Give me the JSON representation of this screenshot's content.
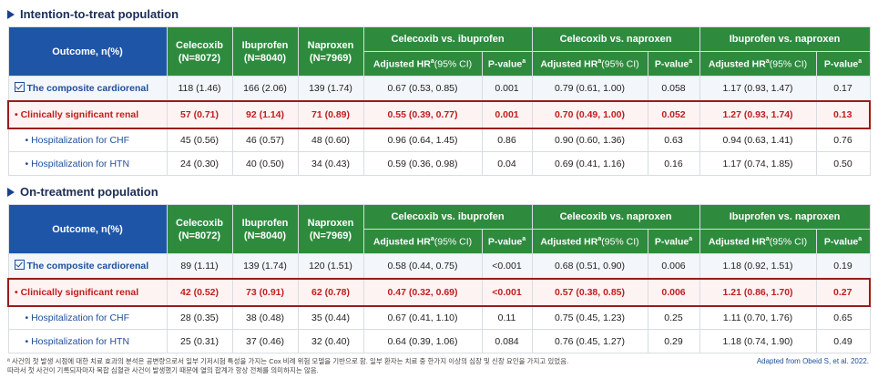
{
  "sections": [
    {
      "title": "Intention-to-treat population",
      "rows": [
        {
          "label": "The composite cardiorenal",
          "vals": [
            "118 (1.46)",
            "166 (2.06)",
            "139 (1.74)",
            "0.67 (0.53, 0.85)",
            "0.001",
            "0.79 (0.61, 1.00)",
            "0.058",
            "1.17 (0.93, 1.47)",
            "0.17"
          ]
        },
        {
          "label": "• Clinically significant renal",
          "vals": [
            "57 (0.71)",
            "92 (1.14)",
            "71 (0.89)",
            "0.55 (0.39, 0.77)",
            "0.001",
            "0.70 (0.49, 1.00)",
            "0.052",
            "1.27 (0.93, 1.74)",
            "0.13"
          ]
        },
        {
          "label": "• Hospitalization for CHF",
          "vals": [
            "45 (0.56)",
            "46 (0.57)",
            "48 (0.60)",
            "0.96 (0.64, 1.45)",
            "0.86",
            "0.90 (0.60, 1.36)",
            "0.63",
            "0.94 (0.63, 1.41)",
            "0.76"
          ]
        },
        {
          "label": "• Hospitalization for HTN",
          "vals": [
            "24 (0.30)",
            "40 (0.50)",
            "34 (0.43)",
            "0.59 (0.36, 0.98)",
            "0.04",
            "0.69 (0.41, 1.16)",
            "0.16",
            "1.17 (0.74, 1.85)",
            "0.50"
          ]
        }
      ]
    },
    {
      "title": "On-treatment population",
      "rows": [
        {
          "label": "The composite cardiorenal",
          "vals": [
            "89 (1.11)",
            "139 (1.74)",
            "120 (1.51)",
            "0.58 (0.44, 0.75)",
            "<0.001",
            "0.68 (0.51, 0.90)",
            "0.006",
            "1.18 (0.92, 1.51)",
            "0.19"
          ]
        },
        {
          "label": "• Clinically significant renal",
          "vals": [
            "42 (0.52)",
            "73 (0.91)",
            "62 (0.78)",
            "0.47 (0.32, 0.69)",
            "<0.001",
            "0.57 (0.38, 0.85)",
            "0.006",
            "1.21 (0.86, 1.70)",
            "0.27"
          ]
        },
        {
          "label": "• Hospitalization for CHF",
          "vals": [
            "28 (0.35)",
            "38 (0.48)",
            "35 (0.44)",
            "0.67 (0.41, 1.10)",
            "0.11",
            "0.75 (0.45, 1.23)",
            "0.25",
            "1.11 (0.70, 1.76)",
            "0.65"
          ]
        },
        {
          "label": "• Hospitalization for HTN",
          "vals": [
            "25 (0.31)",
            "37 (0.46)",
            "32 (0.40)",
            "0.64 (0.39, 1.06)",
            "0.084",
            "0.76 (0.45, 1.27)",
            "0.29",
            "1.18 (0.74, 1.90)",
            "0.49"
          ]
        }
      ]
    }
  ],
  "header": {
    "outcome": "Outcome, n(%)",
    "celecoxib": "Celecoxib",
    "celecoxib_n": "(N=8072)",
    "ibuprofen": "Ibuprofen",
    "ibuprofen_n": "(N=8040)",
    "naproxen": "Naproxen",
    "naproxen_n": "(N=7969)",
    "grp1": "Celecoxib vs. ibuprofen",
    "grp2": "Celecoxib vs. naproxen",
    "grp3": "Ibuprofen vs. naproxen",
    "hr_label": "Adjusted HR",
    "hr_sup": "a",
    "hr_ci": "(95% CI)",
    "p_label": "P-value",
    "p_sup": "a"
  },
  "footnote_line1": "ª 사건의 첫 발생 시점에 대한 치료 효과의 분석은 공변량으로서 일부 기저시험 특성을 가지는 Cox 비례 위험 모델을 기반으로 함. 일부 환자는 치료 중 한가지 이상의 심장 및 신장 요인을 가지고 있었음.",
  "footnote_line2": "따라서 첫 사건이 기록되자마자 복합 심혈관 사건이 발생했기 때문에 열의 합계가 항상 전체를 의미하지는 않음.",
  "credit": "Adapted from Obeid S, et al. 2022."
}
